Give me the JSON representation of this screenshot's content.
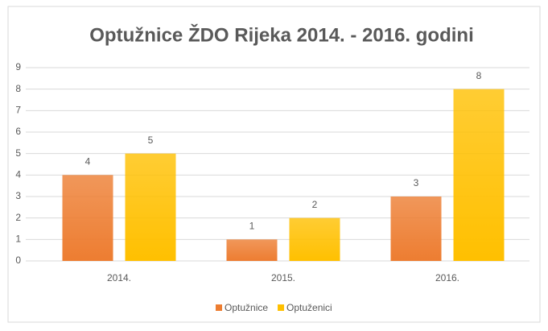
{
  "chart_data": {
    "type": "bar",
    "title": "Optužnice ŽDO Rijeka 2014. - 2016. godini",
    "categories": [
      "2014.",
      "2015.",
      "2016."
    ],
    "series": [
      {
        "name": "Optužnice",
        "color": "#ed7d31",
        "values": [
          4,
          1,
          3
        ]
      },
      {
        "name": "Optuženici",
        "color": "#ffc000",
        "values": [
          5,
          2,
          8
        ]
      }
    ],
    "ylim": [
      0,
      9
    ],
    "yticks": [
      0,
      1,
      2,
      3,
      4,
      5,
      6,
      7,
      8,
      9
    ],
    "grid": true,
    "legend": "bottom",
    "data_labels": true
  }
}
